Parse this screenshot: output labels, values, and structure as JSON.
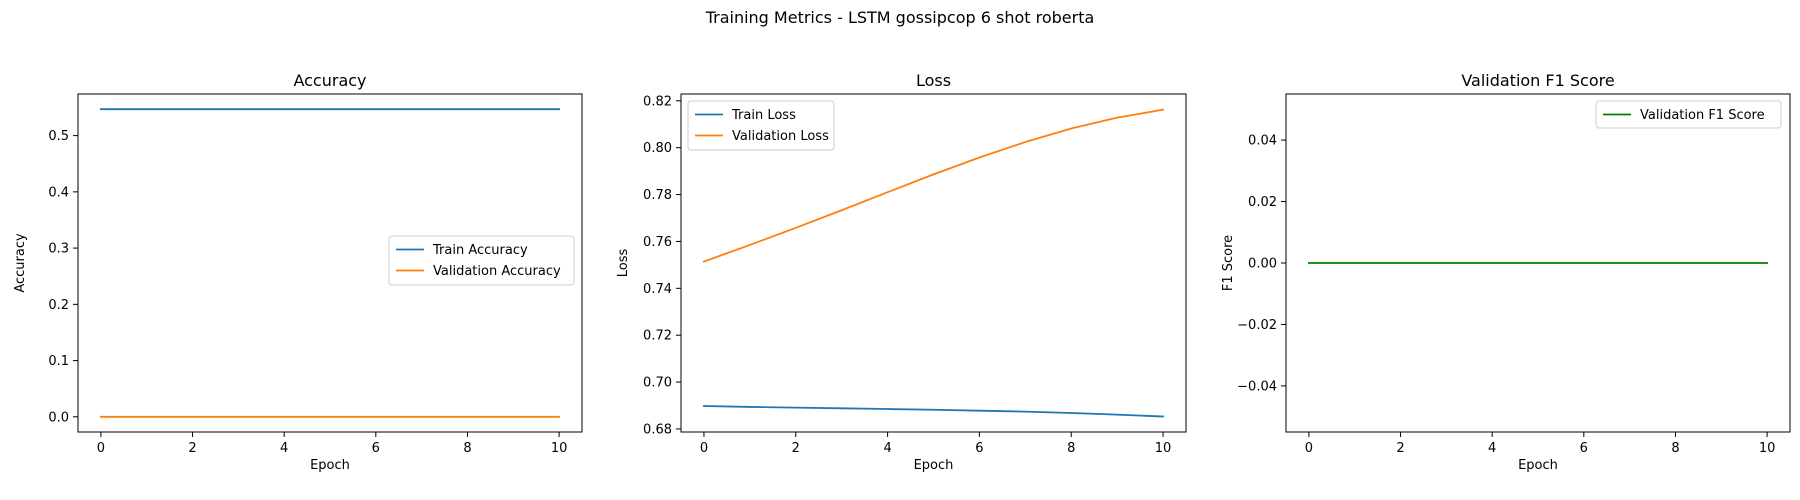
{
  "figure": {
    "suptitle": "Training Metrics - LSTM gossipcop 6 shot roberta"
  },
  "chart_data": [
    {
      "type": "line",
      "title": "Accuracy",
      "xlabel": "Epoch",
      "ylabel": "Accuracy",
      "xlim": [
        -0.5,
        10.5
      ],
      "ylim": [
        -0.027,
        0.574
      ],
      "xticks": [
        0,
        2,
        4,
        6,
        8,
        10
      ],
      "yticks": [
        0.0,
        0.1,
        0.2,
        0.3,
        0.4,
        0.5
      ],
      "ytick_labels": [
        "0.0",
        "0.1",
        "0.2",
        "0.3",
        "0.4",
        "0.5"
      ],
      "legend": "center-right",
      "grid": false,
      "x": [
        0,
        1,
        2,
        3,
        4,
        5,
        6,
        7,
        8,
        9,
        10
      ],
      "series": [
        {
          "name": "Train Accuracy",
          "color": "#1f77b4",
          "values": [
            0.547,
            0.547,
            0.547,
            0.547,
            0.547,
            0.547,
            0.547,
            0.547,
            0.547,
            0.547,
            0.547
          ]
        },
        {
          "name": "Validation Accuracy",
          "color": "#ff7f0e",
          "values": [
            0,
            0,
            0,
            0,
            0,
            0,
            0,
            0,
            0,
            0,
            0
          ]
        }
      ]
    },
    {
      "type": "line",
      "title": "Loss",
      "xlabel": "Epoch",
      "ylabel": "Loss",
      "xlim": [
        -0.5,
        10.5
      ],
      "ylim": [
        0.6787,
        0.8229
      ],
      "xticks": [
        0,
        2,
        4,
        6,
        8,
        10
      ],
      "yticks": [
        0.68,
        0.7,
        0.72,
        0.74,
        0.76,
        0.78,
        0.8,
        0.82
      ],
      "ytick_labels": [
        "0.68",
        "0.70",
        "0.72",
        "0.74",
        "0.76",
        "0.78",
        "0.80",
        "0.82"
      ],
      "legend": "upper-left",
      "grid": false,
      "x": [
        0,
        1,
        2,
        3,
        4,
        5,
        6,
        7,
        8,
        9,
        10
      ],
      "series": [
        {
          "name": "Train Loss",
          "color": "#1f77b4",
          "values": [
            0.6898,
            0.6894,
            0.6891,
            0.6888,
            0.6885,
            0.6882,
            0.6878,
            0.6874,
            0.6868,
            0.6861,
            0.6853
          ]
        },
        {
          "name": "Validation Loss",
          "color": "#ff7f0e",
          "values": [
            0.7514,
            0.7585,
            0.7658,
            0.7733,
            0.781,
            0.7886,
            0.7958,
            0.8024,
            0.8082,
            0.8128,
            0.8162
          ]
        }
      ]
    },
    {
      "type": "line",
      "title": "Validation F1 Score",
      "xlabel": "Epoch",
      "ylabel": "F1 Score",
      "xlim": [
        -0.5,
        10.5
      ],
      "ylim": [
        -0.055,
        0.055
      ],
      "xticks": [
        0,
        2,
        4,
        6,
        8,
        10
      ],
      "yticks": [
        -0.04,
        -0.02,
        0.0,
        0.02,
        0.04
      ],
      "ytick_labels": [
        "−0.04",
        "−0.02",
        "0.00",
        "0.02",
        "0.04"
      ],
      "legend": "upper-right",
      "grid": false,
      "x": [
        0,
        1,
        2,
        3,
        4,
        5,
        6,
        7,
        8,
        9,
        10
      ],
      "series": [
        {
          "name": "Validation F1 Score",
          "color": "#008000",
          "values": [
            0,
            0,
            0,
            0,
            0,
            0,
            0,
            0,
            0,
            0,
            0
          ]
        }
      ]
    }
  ]
}
